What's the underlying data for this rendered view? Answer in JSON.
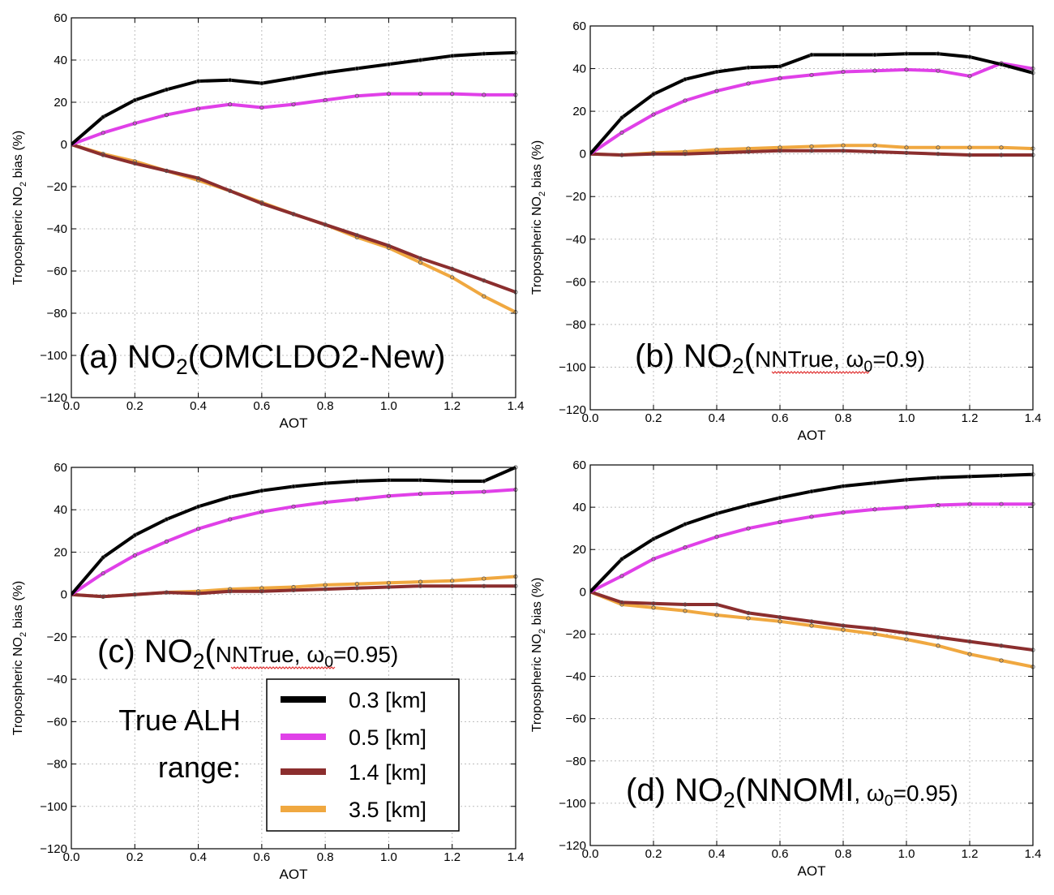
{
  "chart_data": [
    {
      "type": "line",
      "title_parts": [
        "(a) NO",
        "2",
        "(OMCLDO2-New)"
      ],
      "xlabel": "AOT",
      "ylabel_parts": [
        "Tropospheric NO",
        "2",
        " bias (%)"
      ],
      "xlim": [
        0.0,
        1.4
      ],
      "ylim": [
        -120,
        60
      ],
      "xticks": [
        "0.0",
        "0.2",
        "0.4",
        "0.6",
        "0.8",
        "1.0",
        "1.2",
        "1.4"
      ],
      "yticks": [
        "60",
        "40",
        "20",
        "0",
        "−20",
        "−40",
        "−60",
        "−80",
        "−100",
        "−120"
      ],
      "grid": true,
      "x": [
        0.0,
        0.1,
        0.2,
        0.3,
        0.4,
        0.5,
        0.6,
        0.7,
        0.8,
        0.9,
        1.0,
        1.1,
        1.2,
        1.3,
        1.4
      ],
      "series": [
        {
          "name": "0.3 [km]",
          "color": "#000000",
          "values": [
            0,
            13,
            21,
            26,
            30,
            30.5,
            29,
            31.5,
            34,
            36,
            38,
            40,
            42,
            43,
            43.5
          ]
        },
        {
          "name": "0.5 [km]",
          "color": "#e040e8",
          "values": [
            0,
            5.5,
            10,
            14,
            17,
            19,
            17.5,
            19,
            21,
            23,
            24,
            24,
            24,
            23.5,
            23.5
          ]
        },
        {
          "name": "1.4 [km]",
          "color": "#8b2e2e",
          "values": [
            0,
            -5,
            -9,
            -12.5,
            -16,
            -22,
            -28,
            -33,
            -38,
            -43,
            -48,
            -54,
            -59,
            -64.5,
            -70
          ]
        },
        {
          "name": "3.5 [km]",
          "color": "#f0a840",
          "values": [
            0,
            -4.5,
            -8,
            -12.5,
            -17,
            -22,
            -27.5,
            -33,
            -38,
            -44,
            -49,
            -56,
            -63,
            -72,
            -79.5
          ]
        }
      ]
    },
    {
      "type": "line",
      "title_parts": [
        "(b) NO",
        "2",
        "(",
        "NNTrue",
        ", ω",
        "0",
        "=0.9)"
      ],
      "xlabel": "AOT",
      "ylabel_parts": [
        "Tropospheric NO",
        "2",
        " bias (%)"
      ],
      "xlim": [
        0.0,
        1.4
      ],
      "ylim": [
        -120,
        60
      ],
      "xticks": [
        "0.0",
        "0.2",
        "0.4",
        "0.6",
        "0.8",
        "1.0",
        "1.2",
        "1.4"
      ],
      "yticks": [
        "60",
        "40",
        "20",
        "0",
        "−20",
        "−40",
        "−60",
        "−80",
        "−100",
        "−120"
      ],
      "grid": true,
      "x": [
        0.0,
        0.1,
        0.2,
        0.3,
        0.4,
        0.5,
        0.6,
        0.7,
        0.8,
        0.9,
        1.0,
        1.1,
        1.2,
        1.3,
        1.4
      ],
      "series": [
        {
          "name": "0.3 [km]",
          "color": "#000000",
          "values": [
            0,
            17,
            28,
            35,
            38.5,
            40.5,
            41,
            46.5,
            46.5,
            46.5,
            47,
            47,
            45.5,
            42,
            38
          ]
        },
        {
          "name": "0.5 [km]",
          "color": "#e040e8",
          "values": [
            0,
            10,
            18.5,
            25,
            29.5,
            33,
            35.5,
            37,
            38.5,
            39,
            39.5,
            39,
            36.5,
            42.5,
            40
          ]
        },
        {
          "name": "1.4 [km]",
          "color": "#8b2e2e",
          "values": [
            0,
            -0.5,
            0,
            0,
            0.5,
            1,
            1.5,
            1.5,
            1.5,
            1,
            0.5,
            0,
            -0.5,
            -0.5,
            -0.5
          ]
        },
        {
          "name": "3.5 [km]",
          "color": "#f0a840",
          "values": [
            0,
            -0.5,
            0.5,
            1,
            2,
            2.5,
            3,
            3.5,
            4,
            4,
            3,
            3,
            3,
            3,
            2.5
          ]
        }
      ]
    },
    {
      "type": "line",
      "title_parts": [
        "(c) NO",
        "2",
        "(",
        "NNTrue",
        ", ω",
        "0",
        "=0.95)"
      ],
      "xlabel": "AOT",
      "ylabel_parts": [
        "Tropospheric NO",
        "2",
        " bias (%)"
      ],
      "xlim": [
        0.0,
        1.4
      ],
      "ylim": [
        -120,
        60
      ],
      "xticks": [
        "0.0",
        "0.2",
        "0.4",
        "0.6",
        "0.8",
        "1.0",
        "1.2",
        "1.4"
      ],
      "yticks": [
        "60",
        "40",
        "20",
        "0",
        "−20",
        "−40",
        "−60",
        "−80",
        "−100",
        "−120"
      ],
      "grid": true,
      "x": [
        0.0,
        0.1,
        0.2,
        0.3,
        0.4,
        0.5,
        0.6,
        0.7,
        0.8,
        0.9,
        1.0,
        1.1,
        1.2,
        1.3,
        1.4
      ],
      "series": [
        {
          "name": "0.3 [km]",
          "color": "#000000",
          "values": [
            0,
            17.5,
            28,
            35.5,
            41.5,
            46,
            49,
            51,
            52.5,
            53.5,
            54,
            54,
            53.5,
            53.5,
            60
          ]
        },
        {
          "name": "0.5 [km]",
          "color": "#e040e8",
          "values": [
            0,
            10,
            18.5,
            25,
            31,
            35.5,
            39,
            41.5,
            43.5,
            45,
            46.5,
            47.5,
            48,
            48.5,
            49.5
          ]
        },
        {
          "name": "1.4 [km]",
          "color": "#8b2e2e",
          "values": [
            0,
            -1,
            0,
            1,
            0.5,
            1.5,
            1.5,
            2,
            2.5,
            3,
            3.5,
            4,
            4,
            4,
            4
          ]
        },
        {
          "name": "3.5 [km]",
          "color": "#f0a840",
          "values": [
            0,
            -1,
            0,
            1,
            1.5,
            2.5,
            3,
            3.5,
            4.5,
            5,
            5.5,
            6,
            6.5,
            7.5,
            8.5
          ]
        }
      ],
      "legend": {
        "placement": "lower-right",
        "heading": [
          "True ALH",
          "range:"
        ],
        "entries": [
          "0.3 [km]",
          "0.5 [km]",
          "1.4 [km]",
          "3.5 [km]"
        ]
      }
    },
    {
      "type": "line",
      "title_parts": [
        "(d) NO",
        "2",
        "(",
        "NNOMI",
        ", ω",
        "0",
        "=0.95)"
      ],
      "xlabel": "AOT",
      "ylabel_parts": [
        "Tropospheric NO",
        "2",
        " bias (%)"
      ],
      "xlim": [
        0.0,
        1.4
      ],
      "ylim": [
        -120,
        60
      ],
      "xticks": [
        "0.0",
        "0.2",
        "0.4",
        "0.6",
        "0.8",
        "1.0",
        "1.2",
        "1.4"
      ],
      "yticks": [
        "60",
        "40",
        "20",
        "0",
        "−20",
        "−40",
        "−60",
        "−80",
        "−100",
        "−120"
      ],
      "grid": true,
      "x": [
        0.0,
        0.1,
        0.2,
        0.3,
        0.4,
        0.5,
        0.6,
        0.7,
        0.8,
        0.9,
        1.0,
        1.1,
        1.2,
        1.3,
        1.4
      ],
      "series": [
        {
          "name": "0.3 [km]",
          "color": "#000000",
          "values": [
            0,
            15.5,
            25,
            32,
            37,
            41,
            44.5,
            47.5,
            50,
            51.5,
            53,
            54,
            54.5,
            55,
            55.5
          ]
        },
        {
          "name": "0.5 [km]",
          "color": "#e040e8",
          "values": [
            0,
            7.5,
            15.5,
            21,
            26,
            30,
            33,
            35.5,
            37.5,
            39,
            40,
            41,
            41.5,
            41.5,
            41.5
          ]
        },
        {
          "name": "1.4 [km]",
          "color": "#8b2e2e",
          "values": [
            0,
            -5,
            -5.5,
            -6,
            -6,
            -10,
            -12,
            -14,
            -16,
            -17.5,
            -19.5,
            -21.5,
            -23.5,
            -25.5,
            -27.5
          ]
        },
        {
          "name": "3.5 [km]",
          "color": "#f0a840",
          "values": [
            0,
            -6,
            -7.5,
            -9,
            -11,
            -12.5,
            -14,
            -16,
            -18,
            -20,
            -22.5,
            -25.5,
            -29.5,
            -32.5,
            -35.5
          ]
        }
      ]
    }
  ]
}
